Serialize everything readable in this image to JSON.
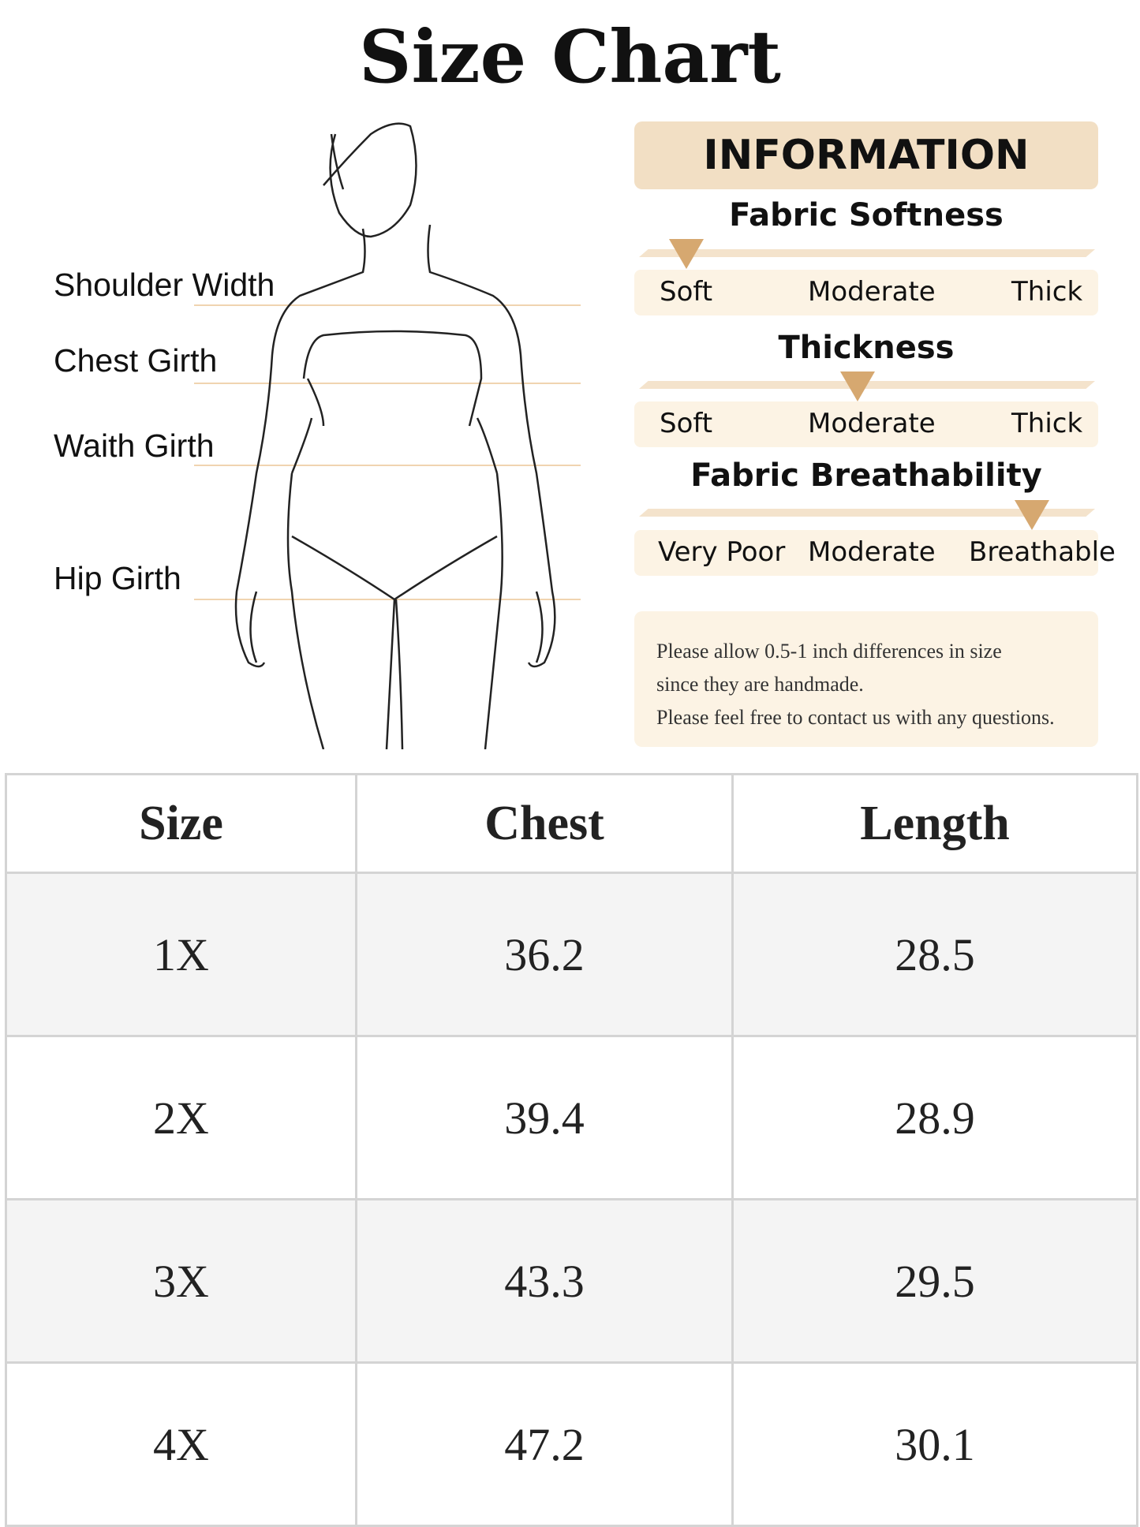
{
  "title": "Size Chart",
  "measurements": [
    "Shoulder Width",
    "Chest Girth",
    "Waith Girth",
    "Hip Girth"
  ],
  "info": {
    "header": "INFORMATION",
    "scales": [
      {
        "title": "Fabric Softness",
        "labels": [
          "Soft",
          "Moderate",
          "Thick"
        ],
        "selected": "Soft"
      },
      {
        "title": "Thickness",
        "labels": [
          "Soft",
          "Moderate",
          "Thick"
        ],
        "selected": "Moderate"
      },
      {
        "title": "Fabric Breathability",
        "labels": [
          "Very Poor",
          "Moderate",
          "Breathable"
        ],
        "selected": "Breathable"
      }
    ],
    "note": [
      "Please allow 0.5-1 inch differences in size",
      "since they are handmade.",
      "Please feel free to contact us with any questions."
    ]
  },
  "accent": "#d6a870",
  "table": {
    "headers": [
      "Size",
      "Chest",
      "Length"
    ],
    "rows": [
      [
        "1X",
        "36.2",
        "28.5"
      ],
      [
        "2X",
        "39.4",
        "28.9"
      ],
      [
        "3X",
        "43.3",
        "29.5"
      ],
      [
        "4X",
        "47.2",
        "30.1"
      ]
    ]
  }
}
